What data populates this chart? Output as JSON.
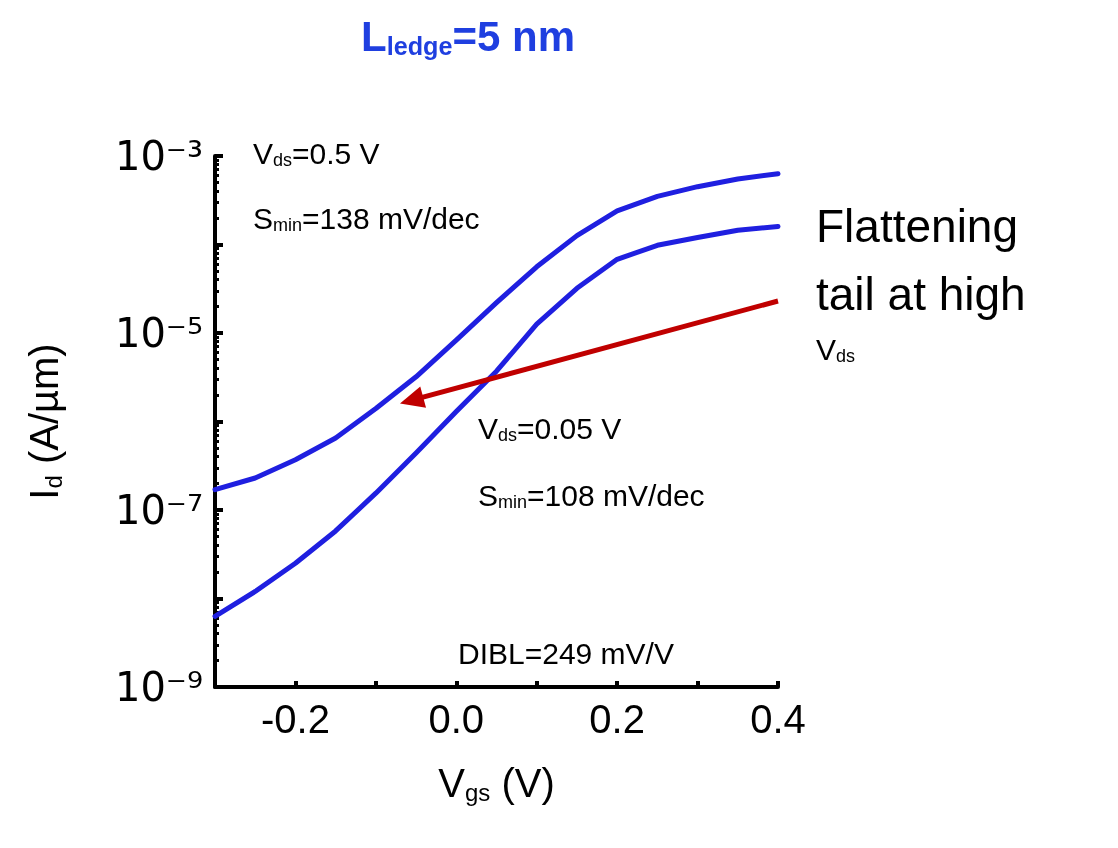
{
  "chart_data": {
    "type": "line",
    "title": "L$_{ledge}$=5 nm",
    "xlabel": "V$_{gs}$ (V)",
    "ylabel": "I$_{d}$ (A/µm)",
    "log": "y",
    "grid": false,
    "marker": "none",
    "line_style": "solid",
    "xlim": [
      -0.3,
      0.4
    ],
    "xticks": [
      {
        "value": -0.3,
        "label": null
      },
      -0.2,
      {
        "value": -0.1,
        "label": null
      },
      {
        "value": 0,
        "label": "0.0"
      },
      {
        "value": 0.1,
        "label": null
      },
      0.2,
      {
        "value": 0.3,
        "label": null
      },
      0.4
    ],
    "ylim": [
      1e-09,
      0.001
    ],
    "yticks": [
      {
        "value": 1e-09,
        "label": "10⁻⁹"
      },
      {
        "value": 1e-08,
        "label": null
      },
      {
        "value": 1e-07,
        "label": "10⁻⁷"
      },
      {
        "value": 1e-06,
        "label": null
      },
      {
        "value": 1e-05,
        "label": "10⁻⁵"
      },
      {
        "value": 0.0001,
        "label": null
      },
      {
        "value": 0.001,
        "label": "10⁻³"
      }
    ],
    "x": [
      -0.3,
      -0.25,
      -0.2,
      -0.15,
      -0.1,
      -0.05,
      0,
      0.05,
      0.1,
      0.15,
      0.2,
      0.25,
      0.3,
      0.35,
      0.4
    ],
    "series": [
      {
        "color": "#1f1fe0",
        "values": [
          1.7e-07,
          2.3e-07,
          3.7e-07,
          6.5e-07,
          1.4e-06,
          3.2e-06,
          8.3e-06,
          2.2e-05,
          5.6e-05,
          0.000126,
          0.00024,
          0.00035,
          0.00045,
          0.00055,
          0.00063
        ]
      },
      {
        "color": "#1f1fe0",
        "values": [
          6.3e-09,
          1.2e-08,
          2.5e-08,
          5.8e-08,
          1.55e-07,
          4.4e-07,
          1.3e-06,
          3.7e-06,
          1.26e-05,
          3.2e-05,
          6.8e-05,
          9.8e-05,
          0.00012,
          0.000145,
          0.00016
        ]
      }
    ],
    "annotations": [
      "V$_{ds}$=0.5 V",
      "S$_{min}$=138 mV/dec",
      "V$_{ds}$=0.05 V",
      "S$_{min}$=108 mV/dec",
      "DIBL=249 mV/V",
      "Flattening tail at high V$_{ds}$"
    ]
  }
}
